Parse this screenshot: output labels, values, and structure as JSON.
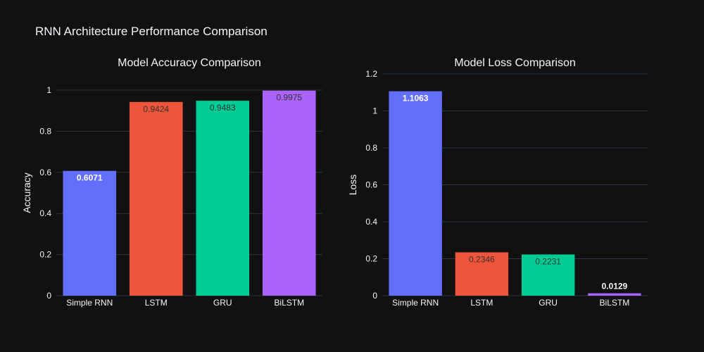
{
  "title": "RNN Architecture Performance Comparison",
  "chart_data": [
    {
      "type": "bar",
      "title": "Model Accuracy Comparison",
      "xlabel": "",
      "ylabel": "Accuracy",
      "categories": [
        "Simple RNN",
        "LSTM",
        "GRU",
        "BiLSTM"
      ],
      "values": [
        0.6071,
        0.9424,
        0.9483,
        0.9975
      ],
      "value_labels": [
        "0.6071",
        "0.9424",
        "0.9483",
        "0.9975"
      ],
      "ylim": [
        0,
        1.0
      ],
      "yticks": [
        0,
        0.2,
        0.4,
        0.6,
        0.8,
        1
      ],
      "ytick_labels": [
        "0",
        "0.2",
        "0.4",
        "0.6",
        "0.8",
        "1"
      ],
      "colors": [
        "#636efa",
        "#ef553b",
        "#00cc96",
        "#ab63fa"
      ],
      "label_colors": [
        "#ffffff",
        "#333333",
        "#333333",
        "#333333"
      ],
      "grid": true
    },
    {
      "type": "bar",
      "title": "Model Loss Comparison",
      "xlabel": "",
      "ylabel": "Loss",
      "categories": [
        "Simple RNN",
        "LSTM",
        "GRU",
        "BiLSTM"
      ],
      "values": [
        1.1063,
        0.2346,
        0.2231,
        0.0129
      ],
      "value_labels": [
        "1.1063",
        "0.2346",
        "0.2231",
        "0.0129"
      ],
      "ylim": [
        0,
        1.2
      ],
      "yticks": [
        0,
        0.2,
        0.4,
        0.6,
        0.8,
        1,
        1.2
      ],
      "ytick_labels": [
        "0",
        "0.2",
        "0.4",
        "0.6",
        "0.8",
        "1",
        "1.2"
      ],
      "colors": [
        "#636efa",
        "#ef553b",
        "#00cc96",
        "#ab63fa"
      ],
      "label_colors": [
        "#ffffff",
        "#333333",
        "#333333",
        "#f2f5fa"
      ],
      "grid": true
    }
  ]
}
